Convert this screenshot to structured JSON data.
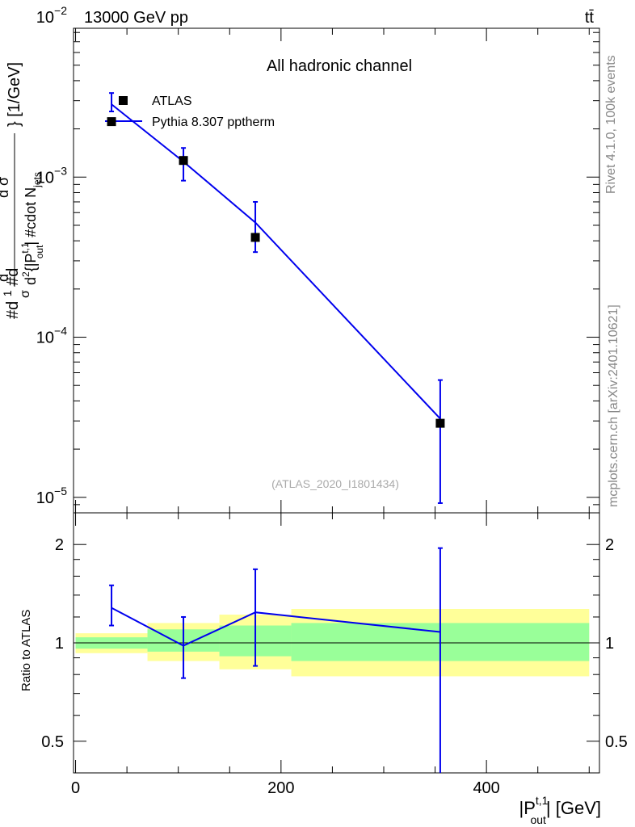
{
  "header": {
    "energy_label": "13000 GeV pp",
    "process_label": "tt̄"
  },
  "side_labels": {
    "rivet": "Rivet 4.1.0,  100k events",
    "mcplots": "mcplots.cern.ch [arXiv:2401.10621]"
  },
  "chart_data": [
    {
      "type": "scatter",
      "panel": "main",
      "title": "All hadronic channel",
      "analysis_tag": "(ATLAS_2020_I1801434)",
      "ylabel": "#d₁/σ #d d²σ^nd / d²{|P_out^{t,1}| #cdot N_jets} [1/GeV]",
      "ylabel_parts": {
        "frac_num": "#d",
        "frac_one": "1",
        "frac_den": "#d",
        "sigma": "σ",
        "d_sigma_top": "d σ",
        "nd": "nd",
        "d2": "d",
        "exp2": "2",
        "brace_open": "{|P",
        "t1": "t,1",
        "out": "out",
        "cdot": "| #cdot N",
        "jets": "jets",
        "close": "} [1/GeV]"
      },
      "yscale": "log",
      "xlim": [
        -2,
        510
      ],
      "ylim": [
        8e-06,
        0.0085
      ],
      "xticks": [
        0,
        200,
        400
      ],
      "yticks": [
        {
          "value": 1e-05,
          "base": "10",
          "exp": "−5"
        },
        {
          "value": 0.0001,
          "base": "10",
          "exp": "−4"
        },
        {
          "value": 0.001,
          "base": "10",
          "exp": "−3"
        },
        {
          "value": 0.01,
          "base": "10",
          "exp": "−2"
        }
      ],
      "legend_position": "top-left",
      "series": [
        {
          "name": "ATLAS",
          "kind": "markers",
          "color": "#000000",
          "x": [
            35,
            105,
            175,
            355
          ],
          "y": [
            0.00222,
            0.00127,
            0.00042,
            2.9e-05
          ]
        },
        {
          "name": "Pythia 8.307 pptherm",
          "kind": "line_with_errors",
          "color": "#0000ee",
          "x": [
            35,
            105,
            175,
            355
          ],
          "y": [
            0.00285,
            0.00125,
            0.00052,
            3.1e-05
          ],
          "err_low": [
            0.00257,
            0.00095,
            0.00034,
            9.2e-06
          ],
          "err_high": [
            0.00335,
            0.00152,
            0.0007,
            5.4e-05
          ]
        }
      ]
    },
    {
      "type": "line",
      "panel": "ratio",
      "ylabel": "Ratio to ATLAS",
      "xlabel": "|P_out^{t,1}| [GeV]",
      "xlabel_parts": {
        "open": "|P",
        "sup": "t,1",
        "sub": "out",
        "close": "| [GeV]"
      },
      "yscale": "log",
      "xlim": [
        -2,
        510
      ],
      "ylim": [
        0.4,
        2.5
      ],
      "xticks": [
        0,
        200,
        400
      ],
      "yticks": [
        0.5,
        1,
        2
      ],
      "bands": [
        {
          "x": [
            0,
            70
          ],
          "green": [
            0.96,
            1.04
          ],
          "yellow": [
            0.93,
            1.07
          ]
        },
        {
          "x": [
            70,
            140
          ],
          "green": [
            0.94,
            1.1
          ],
          "yellow": [
            0.88,
            1.15
          ]
        },
        {
          "x": [
            140,
            210
          ],
          "green": [
            0.91,
            1.13
          ],
          "yellow": [
            0.83,
            1.22
          ]
        },
        {
          "x": [
            210,
            500
          ],
          "green": [
            0.88,
            1.15
          ],
          "yellow": [
            0.79,
            1.27
          ]
        }
      ],
      "series": [
        {
          "name": "Pythia 8.307 pptherm / ATLAS",
          "color": "#0000ee",
          "x": [
            35,
            105,
            175,
            355
          ],
          "y": [
            1.28,
            0.98,
            1.24,
            1.08
          ],
          "err_low": [
            1.13,
            0.78,
            0.85,
            0.38
          ],
          "err_high": [
            1.5,
            1.2,
            1.68,
            1.95
          ]
        }
      ]
    }
  ]
}
